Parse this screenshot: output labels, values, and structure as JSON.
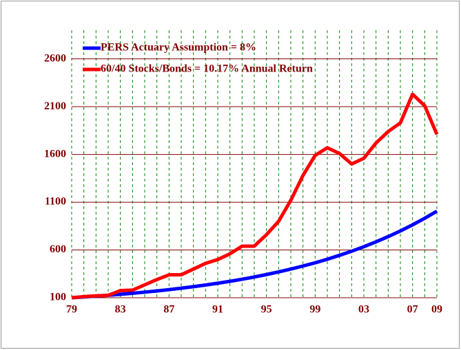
{
  "chart_data": {
    "type": "line",
    "categories": [
      "79",
      null,
      null,
      null,
      "83",
      null,
      null,
      null,
      "87",
      null,
      null,
      null,
      "91",
      null,
      null,
      null,
      "95",
      null,
      null,
      null,
      "99",
      null,
      null,
      null,
      "03",
      null,
      null,
      null,
      "07",
      null,
      "09"
    ],
    "series": [
      {
        "name": "PERS Actuary Assumption = 8%",
        "color": "#0000ff",
        "values": [
          100,
          108,
          117,
          126,
          136,
          147,
          159,
          171,
          185,
          200,
          216,
          233,
          252,
          272,
          294,
          317,
          343,
          370,
          400,
          432,
          466,
          503,
          544,
          587,
          634,
          685,
          740,
          799,
          863,
          932,
          1006
        ]
      },
      {
        "name": "60/40 Stocks/Bonds = 10.17% Annual Return",
        "color": "#ff0000",
        "values": [
          100,
          112,
          120,
          125,
          175,
          180,
          235,
          290,
          340,
          340,
          400,
          460,
          500,
          560,
          640,
          640,
          760,
          900,
          1120,
          1380,
          1590,
          1670,
          1610,
          1500,
          1560,
          1720,
          1840,
          1930,
          2230,
          2110,
          1810
        ]
      }
    ],
    "ylim": [
      100,
      2900
    ],
    "yticks": [
      100,
      600,
      1100,
      1600,
      2100,
      2600
    ],
    "grid": true
  }
}
